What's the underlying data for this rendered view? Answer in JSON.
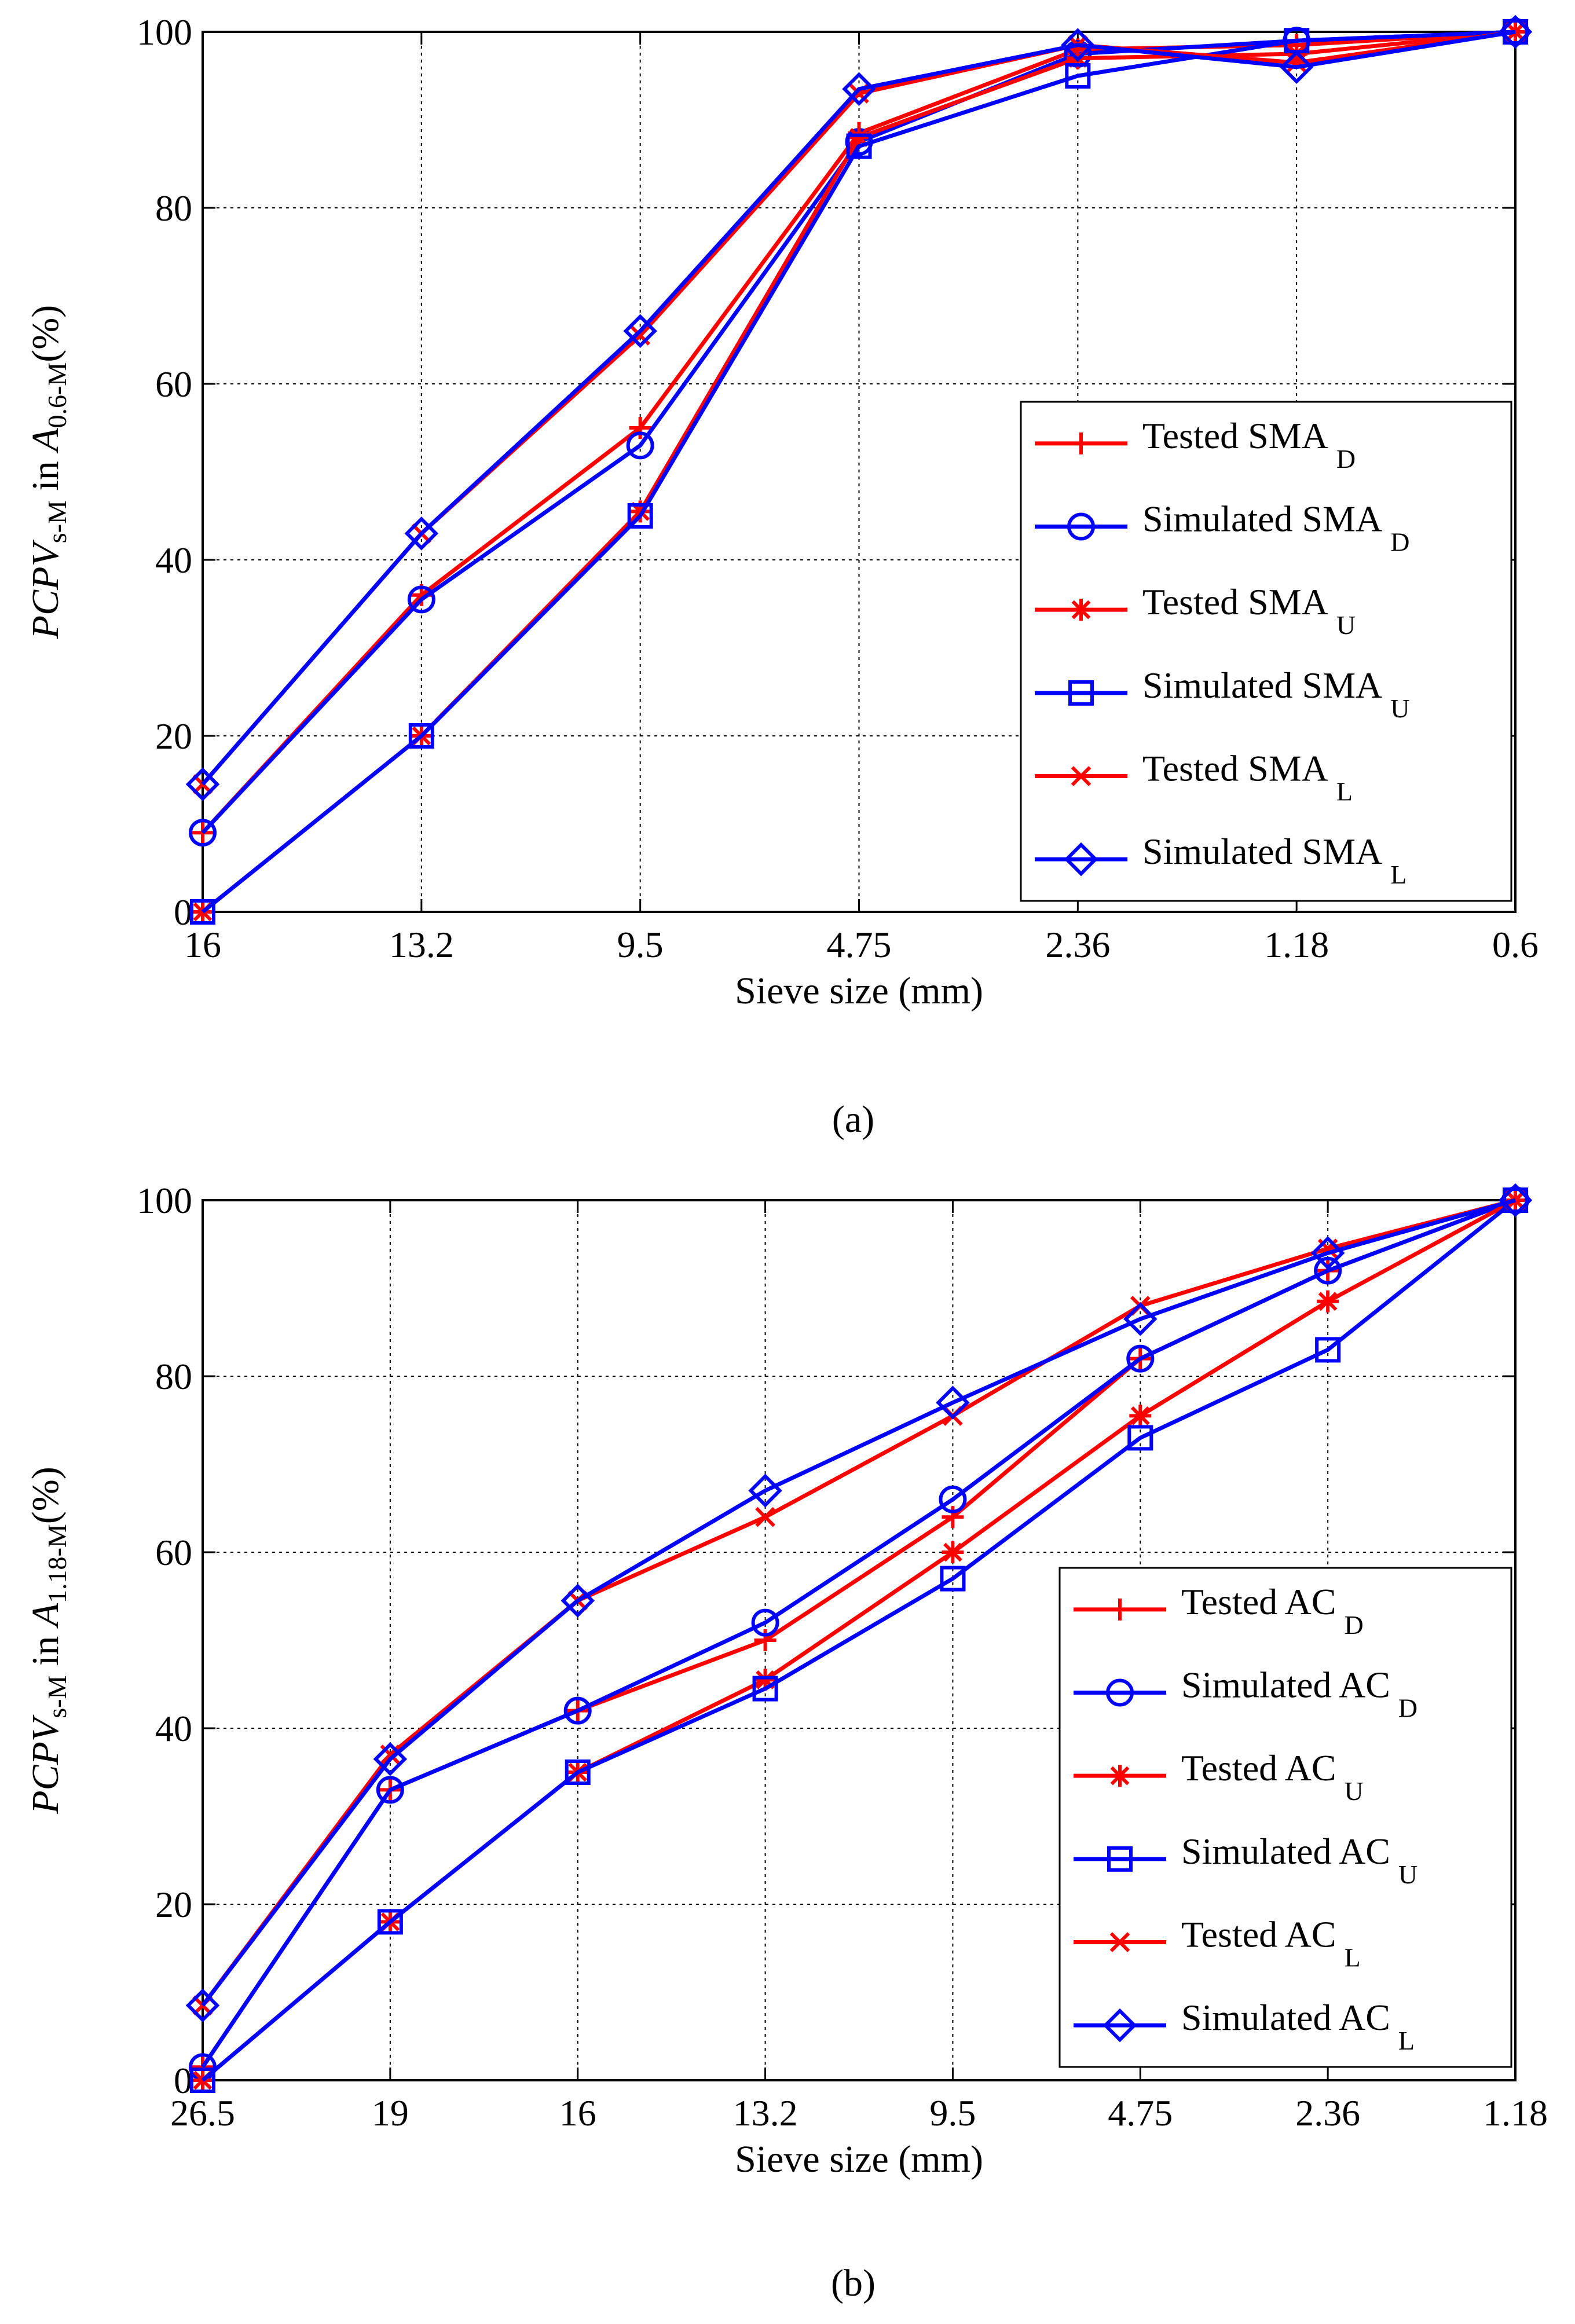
{
  "colors": {
    "tested": "#ff0000",
    "simulated": "#0000ff",
    "axis": "#000000"
  },
  "chart_data": [
    {
      "type": "line",
      "caption": "(a)",
      "xlabel": "Sieve size (mm)",
      "ylabel": {
        "italic_main": "PCPV",
        "sub1": "s-M",
        "middle": " in ",
        "italic_a": "A",
        "sub2": "0.6-M",
        "suffix": "(%)"
      },
      "categories": [
        "16",
        "13.2",
        "9.5",
        "4.75",
        "2.36",
        "1.18",
        "0.6"
      ],
      "yticks": [
        "0",
        "20",
        "40",
        "60",
        "80",
        "100"
      ],
      "ylim": [
        0,
        100
      ],
      "grid": true,
      "legend_position": "bottom-right",
      "series": [
        {
          "name": "Tested SMA",
          "sub": "D",
          "marker": "plus",
          "color": "tested",
          "values": [
            9,
            36,
            55,
            88.5,
            98,
            98.5,
            100
          ]
        },
        {
          "name": "Simulated SMA",
          "sub": "D",
          "marker": "circle",
          "color": "simulated",
          "values": [
            9,
            35.5,
            53,
            87.5,
            97.5,
            99,
            100
          ]
        },
        {
          "name": "Tested SMA",
          "sub": "U",
          "marker": "asterisk",
          "color": "tested",
          "values": [
            0,
            20,
            45.5,
            88,
            97,
            97.5,
            100
          ]
        },
        {
          "name": "Simulated SMA",
          "sub": "U",
          "marker": "square",
          "color": "simulated",
          "values": [
            0,
            20,
            45,
            87,
            95,
            99,
            100
          ]
        },
        {
          "name": "Tested SMA",
          "sub": "L",
          "marker": "x",
          "color": "tested",
          "values": [
            14.5,
            43,
            65.5,
            93,
            98.5,
            96.5,
            100
          ]
        },
        {
          "name": "Simulated SMA",
          "sub": "L",
          "marker": "diamond",
          "color": "simulated",
          "values": [
            14.5,
            43,
            66,
            93.5,
            98.5,
            96,
            100
          ]
        }
      ]
    },
    {
      "type": "line",
      "caption": "(b)",
      "xlabel": "Sieve size (mm)",
      "ylabel": {
        "italic_main": "PCPV",
        "sub1": "s-M",
        "middle": " in ",
        "italic_a": "A",
        "sub2": "1.18-M",
        "suffix": "(%)"
      },
      "categories": [
        "26.5",
        "19",
        "16",
        "13.2",
        "9.5",
        "4.75",
        "2.36",
        "1.18"
      ],
      "yticks": [
        "0",
        "20",
        "40",
        "60",
        "80",
        "100"
      ],
      "ylim": [
        0,
        100
      ],
      "grid": true,
      "legend_position": "bottom-right",
      "series": [
        {
          "name": "Tested AC",
          "sub": "D",
          "marker": "plus",
          "color": "tested",
          "values": [
            1.5,
            33,
            42,
            50,
            64,
            82,
            92,
            100
          ]
        },
        {
          "name": "Simulated AC",
          "sub": "D",
          "marker": "circle",
          "color": "simulated",
          "values": [
            1.5,
            33,
            42,
            52,
            66,
            82,
            92,
            100
          ]
        },
        {
          "name": "Tested AC",
          "sub": "U",
          "marker": "asterisk",
          "color": "tested",
          "values": [
            0,
            18,
            35,
            45.5,
            60,
            75.5,
            88.5,
            100
          ]
        },
        {
          "name": "Simulated AC",
          "sub": "U",
          "marker": "square",
          "color": "simulated",
          "values": [
            0,
            18,
            35,
            44.5,
            57,
            73,
            83,
            100
          ]
        },
        {
          "name": "Tested AC",
          "sub": "L",
          "marker": "x",
          "color": "tested",
          "values": [
            8.5,
            37,
            54.5,
            64,
            75.5,
            88,
            94.5,
            100
          ]
        },
        {
          "name": "Simulated AC",
          "sub": "L",
          "marker": "diamond",
          "color": "simulated",
          "values": [
            8.5,
            36.5,
            54.5,
            67,
            77,
            86.5,
            94,
            100
          ]
        }
      ]
    }
  ]
}
